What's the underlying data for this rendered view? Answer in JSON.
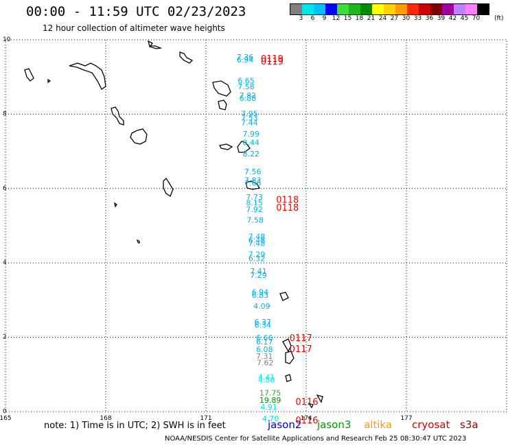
{
  "header": {
    "title": "00:00 - 11:59 UTC 02/23/2023",
    "subtitle": "12 hour collection of altimeter wave heights"
  },
  "colorbar": {
    "colors": [
      "#7f7f7f",
      "#00e5e5",
      "#00c0ff",
      "#0000ff",
      "#3fdc3f",
      "#1fb51f",
      "#008c00",
      "#ffff00",
      "#ffd200",
      "#ff9c00",
      "#ff2a00",
      "#c80000",
      "#7f0000",
      "#a000a0",
      "#c080ff",
      "#ff80ff",
      "#000000"
    ],
    "labels": [
      "3",
      "6",
      "9",
      "12",
      "15",
      "18",
      "21",
      "24",
      "27",
      "30",
      "33",
      "36",
      "39",
      "42",
      "45",
      "70"
    ],
    "unit": "(ft)"
  },
  "axes": {
    "x_ticks": [
      "165",
      "168",
      "171",
      "174",
      "177"
    ],
    "y_ticks": [
      "10",
      "8",
      "6",
      "4",
      "2",
      "0"
    ]
  },
  "readings": [
    {
      "t": "7.36",
      "lon": 171.92,
      "lat": 9.72,
      "c": "#00b0e0"
    },
    {
      "t": "6.94",
      "lon": 171.92,
      "lat": 9.65,
      "c": "#00b0e0"
    },
    {
      "t": "6.65",
      "lon": 171.95,
      "lat": 9.09,
      "c": "#00b0e0"
    },
    {
      "t": "7.58",
      "lon": 171.95,
      "lat": 8.93,
      "c": "#00b0e0"
    },
    {
      "t": "7.82",
      "lon": 172.0,
      "lat": 8.69,
      "c": "#00b0e0"
    },
    {
      "t": "6.88",
      "lon": 172.0,
      "lat": 8.62,
      "c": "#00b0e0"
    },
    {
      "t": "7.95",
      "lon": 172.05,
      "lat": 8.2,
      "c": "#00b0e0"
    },
    {
      "t": "7.53",
      "lon": 172.05,
      "lat": 8.09,
      "c": "#00b0e0"
    },
    {
      "t": "7.44",
      "lon": 172.05,
      "lat": 7.96,
      "c": "#00b0e0"
    },
    {
      "t": "7.99",
      "lon": 172.1,
      "lat": 7.66,
      "c": "#00b0e0"
    },
    {
      "t": "8.44",
      "lon": 172.1,
      "lat": 7.43,
      "c": "#00b0e0"
    },
    {
      "t": "8.22",
      "lon": 172.1,
      "lat": 7.12,
      "c": "#00b0e0"
    },
    {
      "t": "7.56",
      "lon": 172.15,
      "lat": 6.64,
      "c": "#00b0e0"
    },
    {
      "t": "7.83",
      "lon": 172.15,
      "lat": 6.41,
      "c": "#00b0e0"
    },
    {
      "t": "7.66",
      "lon": 172.15,
      "lat": 6.34,
      "c": "#00b0e0"
    },
    {
      "t": "7.73",
      "lon": 172.2,
      "lat": 5.96,
      "c": "#00b0e0"
    },
    {
      "t": "8.15",
      "lon": 172.2,
      "lat": 5.8,
      "c": "#00b0e0"
    },
    {
      "t": "7.92",
      "lon": 172.2,
      "lat": 5.63,
      "c": "#00b0e0"
    },
    {
      "t": "7.58",
      "lon": 172.22,
      "lat": 5.34,
      "c": "#00b0e0"
    },
    {
      "t": "7.48",
      "lon": 172.27,
      "lat": 4.9,
      "c": "#00b0e0"
    },
    {
      "t": "6.48",
      "lon": 172.27,
      "lat": 4.8,
      "c": "#00b0e0"
    },
    {
      "t": "7.48",
      "lon": 172.27,
      "lat": 4.71,
      "c": "#00b0e0"
    },
    {
      "t": "7.29",
      "lon": 172.27,
      "lat": 4.42,
      "c": "#00b0e0"
    },
    {
      "t": "6.32",
      "lon": 172.27,
      "lat": 4.31,
      "c": "#00b0e0"
    },
    {
      "t": "7.41",
      "lon": 172.32,
      "lat": 3.97,
      "c": "#00b0e0"
    },
    {
      "t": "7.29",
      "lon": 172.32,
      "lat": 3.86,
      "c": "#00b0e0"
    },
    {
      "t": "6.94",
      "lon": 172.37,
      "lat": 3.4,
      "c": "#00b0e0"
    },
    {
      "t": "6.83",
      "lon": 172.37,
      "lat": 3.32,
      "c": "#00b0e0"
    },
    {
      "t": "4.09",
      "lon": 172.42,
      "lat": 3.03,
      "c": "#00b0e0"
    },
    {
      "t": "6.37",
      "lon": 172.45,
      "lat": 2.6,
      "c": "#00b0e0"
    },
    {
      "t": "6.34",
      "lon": 172.45,
      "lat": 2.52,
      "c": "#00b0e0"
    },
    {
      "t": "6.66",
      "lon": 172.5,
      "lat": 2.18,
      "c": "#00b0e0"
    },
    {
      "t": "6.17",
      "lon": 172.5,
      "lat": 2.07,
      "c": "#00b0e0"
    },
    {
      "t": "6.08",
      "lon": 172.5,
      "lat": 1.86,
      "c": "#00b0e0"
    },
    {
      "t": "7.31",
      "lon": 172.5,
      "lat": 1.68,
      "c": "#7f7f7f"
    },
    {
      "t": "7.62",
      "lon": 172.52,
      "lat": 1.5,
      "c": "#7f7f7f"
    },
    {
      "t": "4.41",
      "lon": 172.56,
      "lat": 1.12,
      "c": "#00e5e5"
    },
    {
      "t": "4.80",
      "lon": 172.56,
      "lat": 1.04,
      "c": "#00e5e5"
    },
    {
      "t": "17.75",
      "lon": 172.6,
      "lat": 0.69,
      "c": "#1fb51f"
    },
    {
      "t": "19.89",
      "lon": 172.6,
      "lat": 0.5,
      "c": "#008c00"
    },
    {
      "t": "4.91",
      "lon": 172.63,
      "lat": 0.31,
      "c": "#00e5e5"
    },
    {
      "t": "4.70",
      "lon": 172.68,
      "lat": 0.0,
      "c": "#00e5e5"
    }
  ],
  "times": [
    {
      "t": "0119",
      "lon": 172.64,
      "lat": 9.72
    },
    {
      "t": "0119",
      "lon": 172.64,
      "lat": 9.65
    },
    {
      "t": "0118",
      "lon": 173.1,
      "lat": 5.93
    },
    {
      "t": "0118",
      "lon": 173.1,
      "lat": 5.72
    },
    {
      "t": "0117",
      "lon": 173.5,
      "lat": 2.21
    },
    {
      "t": "0117",
      "lon": 173.5,
      "lat": 1.92
    },
    {
      "t": "0116",
      "lon": 173.68,
      "lat": 0.5
    },
    {
      "t": "0116",
      "lon": 173.68,
      "lat": 0.0
    }
  ],
  "notes": {
    "note_text": "note:  1) Time is in UTC;  2) SWH is in feet",
    "legend": [
      {
        "name": "jason2",
        "color": "#0000cc"
      },
      {
        "name": "jason3",
        "color": "#009900"
      },
      {
        "name": "altika",
        "color": "#ff9900"
      },
      {
        "name": "cryosat",
        "color": "#cc0000"
      },
      {
        "name": "s3a",
        "color": "#990000"
      }
    ],
    "footer": "NOAA/NESDIS Center for Satellite Applications and Research    Feb 25 08:30:47 UTC 2023"
  }
}
